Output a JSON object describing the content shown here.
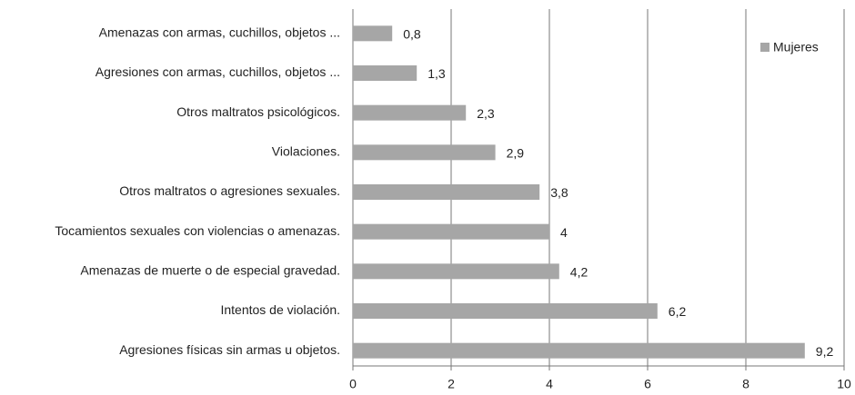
{
  "chart_data": {
    "type": "hbar",
    "categories": [
      "Amenazas con armas, cuchillos, objetos ...",
      "Agresiones con armas, cuchillos, objetos ...",
      "Otros maltratos psicológicos.",
      "Violaciones.",
      "Otros maltratos o agresiones sexuales.",
      "Tocamientos sexuales con violencias o amenazas.",
      "Amenazas de muerte o de especial gravedad.",
      "Intentos de violación.",
      "Agresiones físicas sin armas u objetos."
    ],
    "series": [
      {
        "name": "Mujeres",
        "color": "#a6a6a6",
        "values": [
          0.8,
          1.3,
          2.3,
          2.9,
          3.8,
          4,
          4.2,
          6.2,
          9.2
        ],
        "value_labels": [
          "0,8",
          "1,3",
          "2,3",
          "2,9",
          "3,8",
          "4",
          "4,2",
          "6,2",
          "9,2"
        ]
      }
    ],
    "xlim": [
      0,
      10
    ],
    "xticks": [
      0,
      2,
      4,
      6,
      8,
      10
    ],
    "grid": true,
    "legend": "upper right"
  }
}
